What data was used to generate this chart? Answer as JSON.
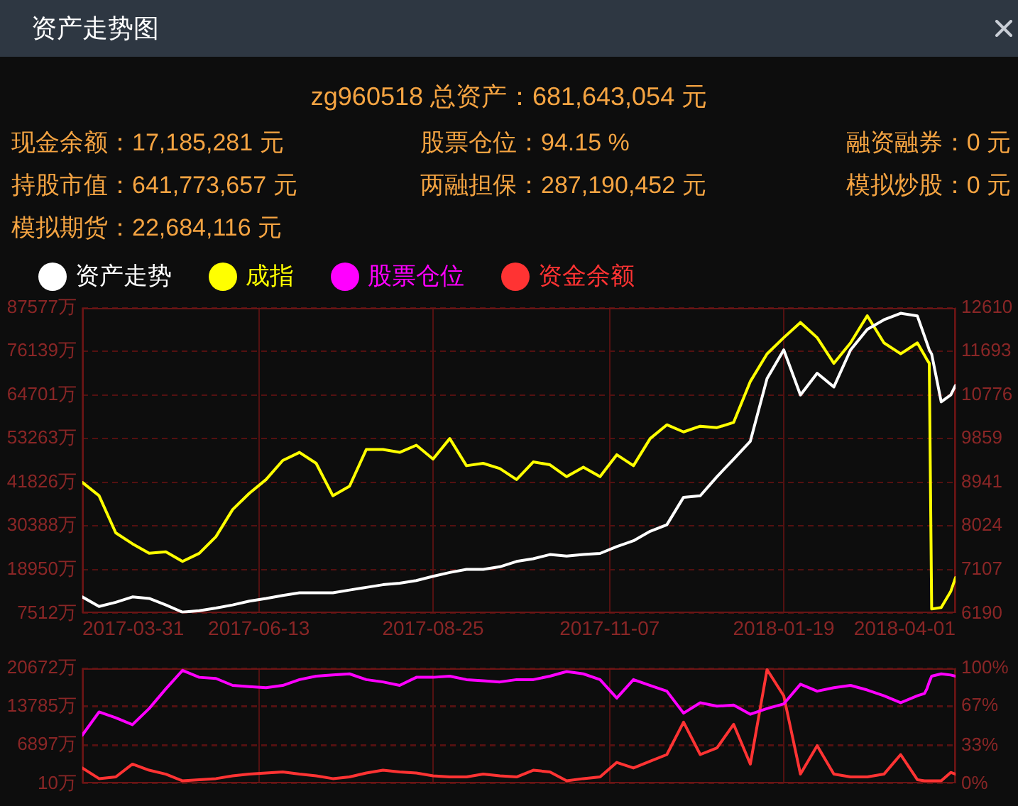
{
  "chart_data": [
    {
      "type": "line",
      "title": "资产走势图",
      "subtitle": "zg960518 总资产：681,643,054 元",
      "annotations": [
        "现金余额：17,185,281 元",
        "股票仓位：94.15 %",
        "融资融券：0 元",
        "持股市值：641,773,657 元",
        "两融担保：287,190,452 元",
        "模拟炒股：0 元",
        "模拟期货：22,684,116 元"
      ],
      "x": [
        "2017-03-31",
        "2017-04-07",
        "2017-04-14",
        "2017-04-21",
        "2017-04-28",
        "2017-05-05",
        "2017-05-12",
        "2017-05-19",
        "2017-05-26",
        "2017-06-02",
        "2017-06-09",
        "2017-06-16",
        "2017-06-23",
        "2017-06-30",
        "2017-07-07",
        "2017-07-14",
        "2017-07-21",
        "2017-07-28",
        "2017-08-04",
        "2017-08-11",
        "2017-08-18",
        "2017-08-25",
        "2017-09-01",
        "2017-09-08",
        "2017-09-15",
        "2017-09-22",
        "2017-09-29",
        "2017-10-06",
        "2017-10-13",
        "2017-10-20",
        "2017-10-27",
        "2017-11-03",
        "2017-11-10",
        "2017-11-17",
        "2017-11-24",
        "2017-12-01",
        "2017-12-08",
        "2017-12-15",
        "2017-12-22",
        "2017-12-29",
        "2018-01-05",
        "2018-01-12",
        "2018-01-19",
        "2018-01-26",
        "2018-02-02",
        "2018-02-09",
        "2018-02-16",
        "2018-02-23",
        "2018-03-02",
        "2018-03-09",
        "2018-03-16",
        "2018-03-19",
        "2018-03-20",
        "2018-03-21",
        "2018-03-22",
        "2018-03-26",
        "2018-03-30",
        "2018-04-01"
      ],
      "xlim": [
        "2017-03-31",
        "2018-04-01"
      ],
      "xticks": [
        "2017-03-31",
        "2017-06-13",
        "2017-08-25",
        "2017-11-07",
        "2018-01-19",
        "2018-04-01"
      ],
      "ylim": [
        7512,
        87577
      ],
      "yticks": [
        {
          "value": 7512,
          "label": "7512万"
        },
        {
          "value": 18950,
          "label": "18950万"
        },
        {
          "value": 30388,
          "label": "30388万"
        },
        {
          "value": 41826,
          "label": "41826万"
        },
        {
          "value": 53263,
          "label": "53263万"
        },
        {
          "value": 64701,
          "label": "64701万"
        },
        {
          "value": 76139,
          "label": "76139万"
        },
        {
          "value": 87577,
          "label": "87577万"
        }
      ],
      "y2lim": [
        6190,
        12610
      ],
      "y2ticks": [
        6190,
        7107,
        8024,
        8941,
        9859,
        10776,
        11693,
        12610
      ],
      "series": [
        {
          "name": "资产走势",
          "color": "#ffffff",
          "values": [
            11800,
            9300,
            10400,
            11800,
            11400,
            9700,
            7800,
            8200,
            8900,
            9700,
            10700,
            11400,
            12200,
            12900,
            12900,
            12900,
            13600,
            14300,
            15000,
            15400,
            16100,
            17200,
            18200,
            19000,
            19000,
            19700,
            21100,
            21800,
            22900,
            22500,
            22900,
            23200,
            25000,
            26500,
            29000,
            30700,
            37900,
            38300,
            43300,
            47900,
            52600,
            69000,
            76500,
            64700,
            70400,
            66800,
            76500,
            81900,
            84400,
            86100,
            85400,
            80100,
            78300,
            76500,
            75400,
            62900,
            64700,
            67200
          ]
        },
        {
          "name": "成指",
          "color": "#ffff00",
          "axis": "y2",
          "values": [
            8940,
            8660,
            7880,
            7650,
            7450,
            7480,
            7280,
            7450,
            7800,
            8370,
            8710,
            9000,
            9400,
            9570,
            9340,
            8660,
            8860,
            9630,
            9630,
            9570,
            9720,
            9430,
            9860,
            9290,
            9340,
            9230,
            9000,
            9370,
            9310,
            9060,
            9260,
            9060,
            9520,
            9290,
            9860,
            10150,
            10000,
            10120,
            10090,
            10200,
            11060,
            11640,
            11980,
            12300,
            11980,
            11440,
            11870,
            12440,
            11870,
            11640,
            11870,
            11610,
            11520,
            11440,
            6280,
            6310,
            6650,
            6940
          ]
        }
      ],
      "grid": true,
      "legend": "top left",
      "marker": "none",
      "line_style": "solid"
    },
    {
      "type": "line",
      "x": [
        "2017-03-31",
        "2017-04-07",
        "2017-04-14",
        "2017-04-21",
        "2017-04-28",
        "2017-05-05",
        "2017-05-12",
        "2017-05-19",
        "2017-05-26",
        "2017-06-02",
        "2017-06-09",
        "2017-06-16",
        "2017-06-23",
        "2017-06-30",
        "2017-07-07",
        "2017-07-14",
        "2017-07-21",
        "2017-07-28",
        "2017-08-04",
        "2017-08-11",
        "2017-08-18",
        "2017-08-25",
        "2017-09-01",
        "2017-09-08",
        "2017-09-15",
        "2017-09-22",
        "2017-09-29",
        "2017-10-06",
        "2017-10-13",
        "2017-10-20",
        "2017-10-27",
        "2017-11-03",
        "2017-11-10",
        "2017-11-17",
        "2017-11-24",
        "2017-12-01",
        "2017-12-08",
        "2017-12-15",
        "2017-12-22",
        "2017-12-29",
        "2018-01-05",
        "2018-01-12",
        "2018-01-19",
        "2018-01-26",
        "2018-02-02",
        "2018-02-09",
        "2018-02-16",
        "2018-02-23",
        "2018-03-02",
        "2018-03-09",
        "2018-03-16",
        "2018-03-19",
        "2018-03-20",
        "2018-03-21",
        "2018-03-22",
        "2018-03-26",
        "2018-03-30",
        "2018-04-01"
      ],
      "xlim": [
        "2017-03-31",
        "2018-04-01"
      ],
      "xticks": [
        "2017-03-31",
        "2017-06-13",
        "2017-08-25",
        "2017-11-07",
        "2018-01-19",
        "2018-04-01"
      ],
      "ylim": [
        10,
        20672
      ],
      "yticks": [
        {
          "value": 10,
          "label": "10万"
        },
        {
          "value": 6897,
          "label": "6897万"
        },
        {
          "value": 13785,
          "label": "13785万"
        },
        {
          "value": 20672,
          "label": "20672万"
        }
      ],
      "y2lim": [
        0,
        100
      ],
      "y2ticks": [
        {
          "value": 0,
          "label": "0%"
        },
        {
          "value": 33,
          "label": "33%"
        },
        {
          "value": 67,
          "label": "67%"
        },
        {
          "value": 100,
          "label": "100%"
        }
      ],
      "series": [
        {
          "name": "股票仓位",
          "color": "#ff00ff",
          "axis": "y2",
          "values": [
            42,
            62,
            57,
            51,
            65,
            82,
            98,
            92,
            91,
            85,
            84,
            83,
            85,
            90,
            93,
            94,
            95,
            90,
            88,
            85,
            92,
            92,
            93,
            90,
            89,
            88,
            90,
            90,
            93,
            97,
            95,
            90,
            74,
            90,
            85,
            80,
            61,
            70,
            67,
            68,
            60,
            65,
            69,
            86,
            80,
            83,
            85,
            81,
            76,
            70,
            76,
            78,
            82,
            88,
            93,
            95,
            94,
            93
          ]
        },
        {
          "name": "资金余额",
          "color": "#ff3333",
          "values": [
            2800,
            900,
            1200,
            3500,
            2400,
            1700,
            500,
            700,
            900,
            1400,
            1700,
            1900,
            2100,
            1700,
            1400,
            900,
            1200,
            1900,
            2400,
            2100,
            1900,
            1400,
            1200,
            1200,
            1700,
            1400,
            1200,
            2400,
            2100,
            500,
            900,
            1200,
            3800,
            2800,
            4000,
            5200,
            11000,
            5200,
            6400,
            10600,
            3500,
            20400,
            15700,
            1700,
            6800,
            1700,
            1200,
            1200,
            1700,
            5200,
            700,
            500,
            500,
            500,
            500,
            500,
            2000,
            1700
          ]
        }
      ],
      "grid": true,
      "legend": "top left",
      "tick_labels": "y",
      "marker": "none",
      "line_style": "solid"
    }
  ]
}
